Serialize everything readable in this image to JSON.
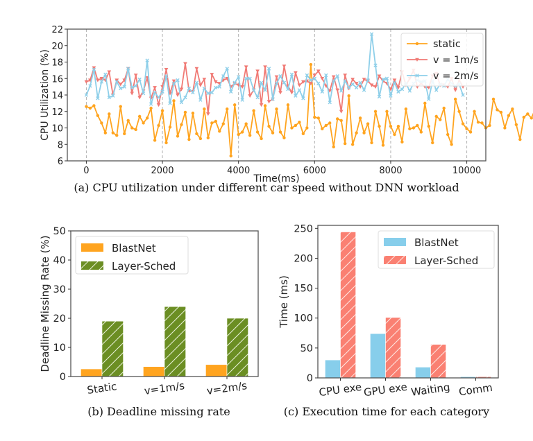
{
  "chart_data": [
    {
      "id": "a",
      "type": "line",
      "caption": "(a)  CPU utilization under different car speed without DNN workload",
      "xlabel": "Time(ms)",
      "ylabel": "CPU Utilization (%)",
      "xlim": [
        -500,
        10500
      ],
      "ylim": [
        6,
        22
      ],
      "xticks": [
        0,
        2000,
        4000,
        6000,
        8000,
        10000
      ],
      "xtick_labels": [
        "0",
        "2000",
        "4000",
        "6000",
        "8000",
        "10000"
      ],
      "yticks": [
        6,
        8,
        10,
        12,
        14,
        16,
        18,
        20,
        22
      ],
      "ytick_labels": [
        "6",
        "8",
        "10",
        "12",
        "14",
        "16",
        "18",
        "20",
        "22"
      ],
      "grid": "vertical-dashed",
      "legend": "top-right",
      "x_start": 0,
      "x_step": 100,
      "series": [
        {
          "name": "static",
          "color": "#ffa41f",
          "marker": "circle",
          "values": [
            12.6,
            12.4,
            12.7,
            11.5,
            10.6,
            9.4,
            11.7,
            9.4,
            9.1,
            12.6,
            9.3,
            10.9,
            10.0,
            9.8,
            11.4,
            10.6,
            11.2,
            12.4,
            8.5,
            10.3,
            12.1,
            8.2,
            10.1,
            13.3,
            9.0,
            10.4,
            11.9,
            8.6,
            11.8,
            9.3,
            8.7,
            12.3,
            8.8,
            10.6,
            10.8,
            9.6,
            10.5,
            12.3,
            6.6,
            12.8,
            9.2,
            9.5,
            10.5,
            9.1,
            12.1,
            9.5,
            8.7,
            12.7,
            10.2,
            9.4,
            12.3,
            9.5,
            8.8,
            12.8,
            10.0,
            10.3,
            10.7,
            9.3,
            10.0,
            17.7,
            11.3,
            11.2,
            9.9,
            10.3,
            10.6,
            7.7,
            11.1,
            10.9,
            8.1,
            13.9,
            8.0,
            9.4,
            11.2,
            9.4,
            10.5,
            8.2,
            12.0,
            10.2,
            7.9,
            12.0,
            10.2,
            9.2,
            10.2,
            8.3,
            12.3,
            9.9,
            10.0,
            10.3,
            9.5,
            13.0,
            10.2,
            8.2,
            11.4,
            11.0,
            12.4,
            9.2,
            8.0,
            13.5,
            12.0,
            10.5,
            9.9,
            9.5,
            12.0,
            10.7,
            10.6,
            10.0,
            10.3,
            13.5,
            12.2,
            11.9,
            10.0,
            11.5,
            12.3,
            10.4,
            8.6,
            11.3,
            11.7,
            11.2,
            12.3,
            9.4
          ],
          "values_note": "100ms sampling"
        },
        {
          "name": "v = 1m/s",
          "color": "#f07a75",
          "marker": "triangle-down",
          "values": [
            15.6,
            15.8,
            17.3,
            15.8,
            16.0,
            15.8,
            16.8,
            14.0,
            15.8,
            15.3,
            15.8,
            17.2,
            14.2,
            16.4,
            13.7,
            14.5,
            16.1,
            13.6,
            14.9,
            12.8,
            15.0,
            17.1,
            14.2,
            15.7,
            14.0,
            14.7,
            17.8,
            14.5,
            14.4,
            17.2,
            15.2,
            15.9,
            11.7,
            16.5,
            15.6,
            15.4,
            15.8,
            16.0,
            15.0,
            15.4,
            15.2,
            15.0,
            17.4,
            13.9,
            14.6,
            16.9,
            12.8,
            17.4,
            13.2,
            13.5,
            16.2,
            14.3,
            17.5,
            15.1,
            14.3,
            16.7,
            15.2,
            15.6,
            15.7,
            15.4,
            16.4,
            16.9,
            16.0,
            15.1,
            14.5,
            16.2,
            14.6,
            12.0,
            16.4,
            14.8,
            15.9,
            15.4,
            15.0,
            15.9,
            15.7,
            15.2,
            15.0,
            16.3,
            15.7,
            15.4,
            14.7,
            15.8,
            14.9,
            16.8,
            15.2,
            16.0,
            17.0,
            15.0,
            15.4,
            15.0,
            14.9,
            16.3,
            16.6,
            15.2,
            15.2,
            15.0,
            16.0,
            14.6,
            15.8,
            15.0
          ],
          "values_note": "100ms sampling"
        },
        {
          "name": "v = 2m/s",
          "color": "#8ecfe9",
          "marker": "x",
          "values": [
            14.0,
            15.1,
            17.1,
            13.6,
            15.6,
            16.5,
            13.7,
            13.9,
            15.6,
            14.8,
            15.0,
            17.2,
            14.9,
            15.1,
            15.9,
            14.2,
            18.2,
            12.9,
            14.3,
            13.7,
            14.4,
            16.3,
            13.0,
            15.4,
            15.8,
            13.1,
            13.7,
            14.8,
            14.3,
            15.5,
            13.4,
            14.8,
            14.2,
            14.3,
            14.9,
            15.0,
            16.3,
            17.2,
            14.4,
            15.5,
            16.2,
            13.4,
            16.0,
            16.0,
            14.6,
            13.7,
            15.5,
            14.6,
            17.2,
            13.5,
            15.4,
            16.3,
            15.5,
            14.7,
            16.5,
            13.9,
            14.6,
            13.6,
            16.4,
            15.8,
            16.0,
            15.4,
            14.4,
            16.4,
            13.1,
            15.7,
            16.3,
            14.5,
            15.7,
            14.9,
            15.3,
            14.9,
            15.5,
            14.6,
            15.8,
            21.4,
            17.6,
            13.8,
            15.9,
            16.0,
            13.9,
            15.5,
            14.4,
            14.7,
            15.4,
            14.5,
            15.4,
            15.8,
            15.6,
            15.7,
            13.5,
            15.7,
            14.6,
            15.3,
            15.1,
            15.9,
            15.4,
            15.1,
            15.3,
            14.0
          ],
          "values_note": "100ms sampling"
        }
      ]
    },
    {
      "id": "b",
      "type": "bar",
      "caption": "(b)  Deadline missing rate",
      "xlabel": "",
      "ylabel": "Deadline Missing Rate (%)",
      "ylim": [
        0,
        50
      ],
      "yticks": [
        0,
        10,
        20,
        30,
        40,
        50
      ],
      "ytick_labels": [
        "0",
        "10",
        "20",
        "30",
        "40",
        "50"
      ],
      "categories": [
        "Static",
        "v=1m/s",
        "v=2m/s"
      ],
      "legend": "top-left",
      "series": [
        {
          "name": "BlastNet",
          "color": "#ffa41f",
          "hatch": false,
          "values": [
            2.6,
            3.4,
            4.1
          ]
        },
        {
          "name": "Layer-Sched",
          "color": "#6b8e23",
          "hatch": true,
          "values": [
            19.0,
            24.0,
            20.0
          ]
        }
      ]
    },
    {
      "id": "c",
      "type": "bar",
      "caption": "(c)  Execution time for each category",
      "xlabel": "",
      "ylabel": "Time (ms)",
      "ylim": [
        0,
        255
      ],
      "yticks": [
        0,
        50,
        100,
        150,
        200,
        250
      ],
      "ytick_labels": [
        "0",
        "50",
        "100",
        "150",
        "200",
        "250"
      ],
      "categories": [
        "CPU exe",
        "GPU exe",
        "Waiting",
        "Comm"
      ],
      "legend": "top-right",
      "series": [
        {
          "name": "BlastNet",
          "color": "#87ceeb",
          "hatch": false,
          "values": [
            30,
            74,
            18,
            2
          ]
        },
        {
          "name": "Layer-Sched",
          "color": "#fa8072",
          "hatch": true,
          "values": [
            244,
            101,
            56,
            2
          ]
        }
      ]
    }
  ]
}
